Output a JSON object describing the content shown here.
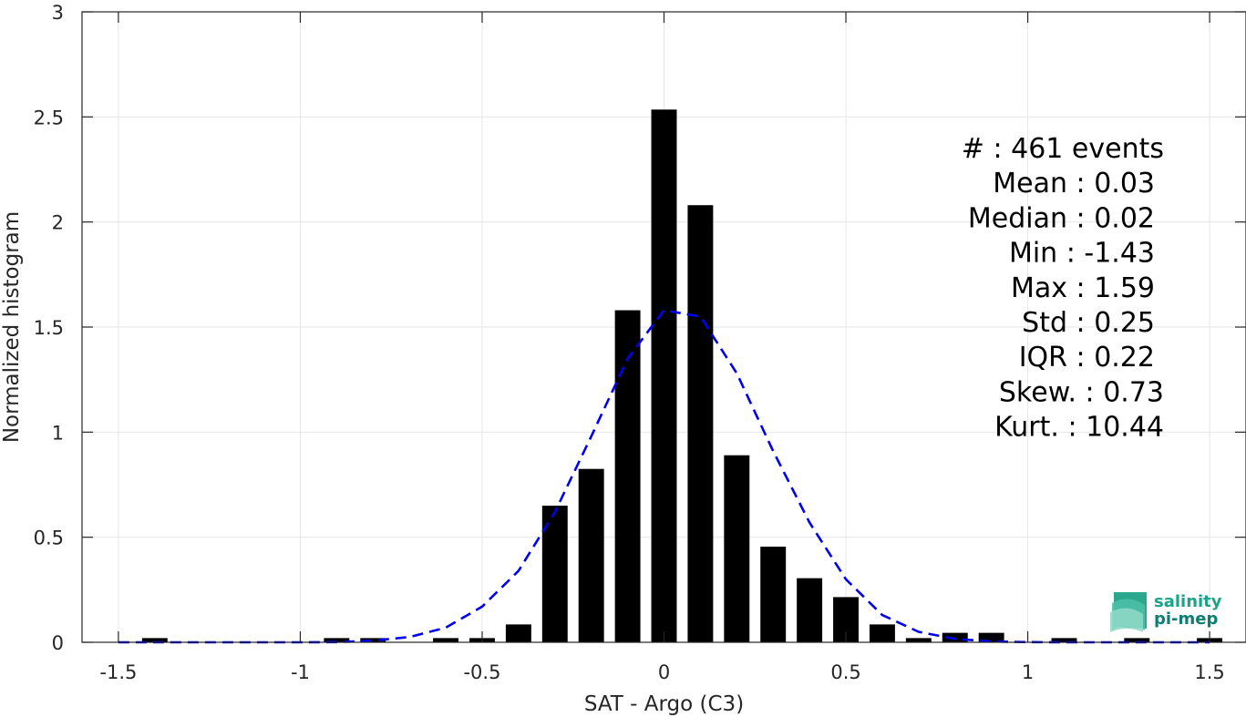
{
  "chart_data": {
    "type": "bar",
    "xlabel": "SAT - Argo (C3)",
    "ylabel": "Normalized histogram",
    "xlim": [
      -1.6,
      1.6
    ],
    "ylim": [
      0,
      3
    ],
    "grid": true,
    "xticks": [
      -1.5,
      -1,
      -0.5,
      0,
      0.5,
      1,
      1.5
    ],
    "xtick_labels": [
      "-1.5",
      "-1",
      "-0.5",
      "0",
      "0.5",
      "1",
      "1.5"
    ],
    "yticks": [
      0,
      0.5,
      1,
      1.5,
      2,
      2.5,
      3
    ],
    "ytick_labels": [
      "0",
      "0.5",
      "1",
      "1.5",
      "2",
      "2.5",
      "3"
    ],
    "bar_width": 0.07,
    "bars": {
      "x": [
        -1.4,
        -0.9,
        -0.8,
        -0.6,
        -0.5,
        -0.4,
        -0.3,
        -0.2,
        -0.1,
        0,
        0.1,
        0.2,
        0.3,
        0.4,
        0.5,
        0.6,
        0.7,
        0.8,
        0.9,
        1.1,
        1.3,
        1.5
      ],
      "values": [
        0.02,
        0.02,
        0.02,
        0.02,
        0.02,
        0.085,
        0.65,
        0.825,
        1.58,
        2.535,
        2.08,
        0.89,
        0.455,
        0.305,
        0.215,
        0.085,
        0.02,
        0.045,
        0.045,
        0.02,
        0.02,
        0.02
      ],
      "color": "#000000"
    },
    "fit_curve": {
      "style": "dashed",
      "color": "#0000ee",
      "x": [
        -1.5,
        -1.4,
        -1.3,
        -1.2,
        -1.1,
        -1.0,
        -0.9,
        -0.8,
        -0.7,
        -0.6,
        -0.5,
        -0.4,
        -0.3,
        -0.2,
        -0.1,
        0.0,
        0.1,
        0.2,
        0.3,
        0.4,
        0.5,
        0.6,
        0.7,
        0.8,
        0.9,
        1.0,
        1.1,
        1.2,
        1.3,
        1.4,
        1.5
      ],
      "values": [
        0,
        0,
        0,
        0,
        0,
        0,
        0.001,
        0.008,
        0.025,
        0.07,
        0.17,
        0.34,
        0.62,
        0.98,
        1.35,
        1.58,
        1.55,
        1.28,
        0.91,
        0.57,
        0.3,
        0.13,
        0.05,
        0.016,
        0.004,
        0.001,
        0,
        0,
        0,
        0,
        0
      ]
    },
    "stats": [
      {
        "text": "#  : 461 events"
      },
      {
        "text": "Mean : 0.03"
      },
      {
        "text": "Median : 0.02"
      },
      {
        "text": "Min : -1.43"
      },
      {
        "text": "Max : 1.59"
      },
      {
        "text": "Std : 0.25"
      },
      {
        "text": "IQR : 0.22"
      },
      {
        "text": "Skew. : 0.73"
      },
      {
        "text": "Kurt. : 10.44"
      }
    ]
  },
  "logo": {
    "line1": "salinity",
    "line2": "pi-mep",
    "color1": "#1aa58a",
    "color2": "#0e7d72"
  }
}
